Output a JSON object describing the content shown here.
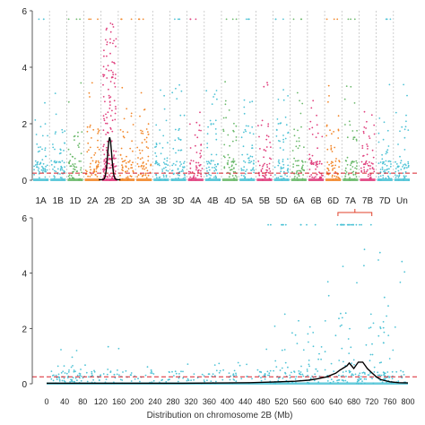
{
  "colors": {
    "threshold": "#d9202a",
    "curve": "#000000",
    "grid": "#bbbbbb",
    "bracket": "#e0402a",
    "bottom_points": "#4fc3d6",
    "chromosomes": [
      "#4fc3d6",
      "#4fc3d6",
      "#6bb96b",
      "#f2872a",
      "#e0407e",
      "#f2872a",
      "#f2872a",
      "#4fc3d6",
      "#4fc3d6",
      "#e0407e",
      "#4fc3d6",
      "#6bb96b",
      "#4fc3d6",
      "#e0407e",
      "#4fc3d6",
      "#6bb96b",
      "#e0407e",
      "#f2872a",
      "#6bb96b",
      "#e0407e",
      "#4fc3d6",
      "#4fc3d6"
    ]
  },
  "chart_data": [
    {
      "type": "scatter",
      "title": "",
      "xlabel": "",
      "ylabel": "",
      "categories": [
        "1A",
        "1B",
        "1D",
        "2A",
        "2B",
        "2D",
        "3A",
        "3B",
        "3D",
        "4A",
        "4B",
        "4D",
        "5A",
        "5B",
        "5D",
        "6A",
        "6B",
        "6D",
        "7A",
        "7B",
        "7D",
        "Un"
      ],
      "ylim": [
        0,
        6
      ],
      "yticks": [
        0,
        2,
        4,
        6
      ],
      "threshold": 0.25,
      "grid": "vertical dashed separators between chromosomes",
      "peak": {
        "chromosome": "2B",
        "max": 5.7
      }
    },
    {
      "type": "scatter",
      "title": "",
      "xlabel": "Distribution on chromosome 2B (Mb)",
      "ylabel": "",
      "xlim": [
        0,
        800
      ],
      "xticks": [
        0,
        40,
        80,
        120,
        160,
        200,
        240,
        280,
        320,
        360,
        400,
        440,
        480,
        520,
        560,
        600,
        640,
        680,
        720,
        760,
        800
      ],
      "ylim": [
        0,
        6
      ],
      "yticks": [
        0,
        2,
        4,
        6
      ],
      "threshold": 0.25,
      "highlight_region": [
        645,
        720
      ],
      "curve": {
        "x": [
          0,
          100,
          200,
          300,
          400,
          450,
          500,
          550,
          580,
          600,
          620,
          640,
          650,
          660,
          665,
          670,
          680,
          690,
          700,
          710,
          720,
          730,
          740,
          760,
          780,
          800
        ],
        "y": [
          0.02,
          0.02,
          0.02,
          0.02,
          0.03,
          0.04,
          0.06,
          0.09,
          0.13,
          0.18,
          0.25,
          0.38,
          0.5,
          0.6,
          0.65,
          0.75,
          0.55,
          0.78,
          0.78,
          0.55,
          0.4,
          0.25,
          0.15,
          0.07,
          0.04,
          0.03
        ]
      }
    }
  ]
}
